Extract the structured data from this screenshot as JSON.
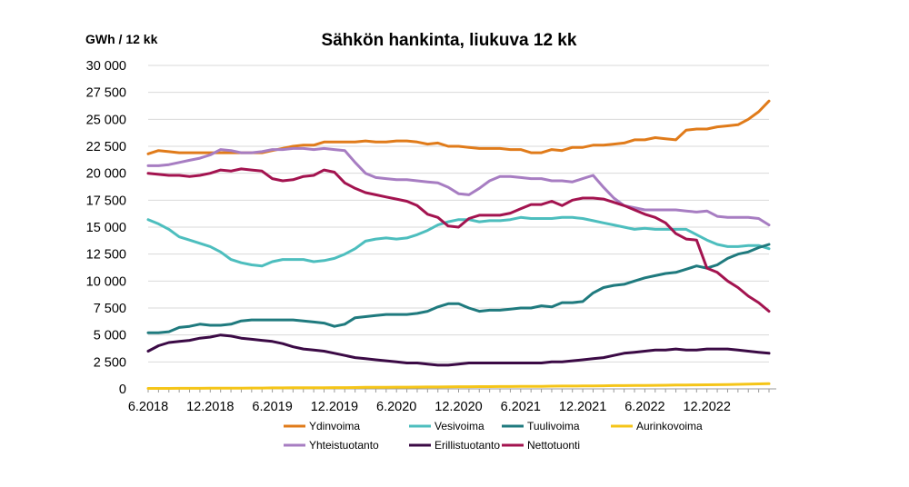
{
  "chart_data": {
    "type": "line",
    "title": "Sähkön hankinta, liukuva 12 kk",
    "ylabel": "GWh / 12 kk",
    "xlabel": "",
    "ylim": [
      0,
      30000
    ],
    "y_ticks": [
      "0",
      "2 500",
      "5 000",
      "7 500",
      "10 000",
      "12 500",
      "15 000",
      "17 500",
      "20 000",
      "22 500",
      "25 000",
      "27 500",
      "30 000"
    ],
    "y_tick_values": [
      0,
      2500,
      5000,
      7500,
      10000,
      12500,
      15000,
      17500,
      20000,
      22500,
      25000,
      27500,
      30000
    ],
    "x_ticks": [
      {
        "label": "6.2018",
        "index": 0
      },
      {
        "label": "12.2018",
        "index": 6
      },
      {
        "label": "6.2019",
        "index": 12
      },
      {
        "label": "12.2019",
        "index": 18
      },
      {
        "label": "6.2020",
        "index": 24
      },
      {
        "label": "12.2020",
        "index": 30
      },
      {
        "label": "6.2021",
        "index": 36
      },
      {
        "label": "12.2021",
        "index": 42
      },
      {
        "label": "6.2022",
        "index": 48
      },
      {
        "label": "12.2022",
        "index": 54
      }
    ],
    "x_range": [
      0,
      60
    ],
    "grid": "horizontal",
    "legend_position": "bottom",
    "series": [
      {
        "name": "Ydinvoima",
        "color": "#E07B1A",
        "values": [
          21800,
          22100,
          22000,
          21900,
          21900,
          21900,
          21900,
          21900,
          21900,
          21900,
          21900,
          21900,
          22100,
          22300,
          22500,
          22600,
          22600,
          22900,
          22900,
          22900,
          22900,
          23000,
          22900,
          22900,
          23000,
          23000,
          22900,
          22700,
          22800,
          22500,
          22500,
          22400,
          22300,
          22300,
          22300,
          22200,
          22200,
          21900,
          21900,
          22200,
          22100,
          22400,
          22400,
          22600,
          22600,
          22700,
          22800,
          23100,
          23100,
          23300,
          23200,
          23100,
          24000,
          24100,
          24100,
          24300,
          24400,
          24500,
          25000,
          25700,
          26700
        ]
      },
      {
        "name": "Vesivoima",
        "color": "#4DBEBE",
        "values": [
          15700,
          15300,
          14800,
          14100,
          13800,
          13500,
          13200,
          12700,
          12000,
          11700,
          11500,
          11400,
          11800,
          12000,
          12000,
          12000,
          11800,
          11900,
          12100,
          12500,
          13000,
          13700,
          13900,
          14000,
          13900,
          14000,
          14300,
          14700,
          15200,
          15500,
          15700,
          15700,
          15500,
          15600,
          15600,
          15700,
          15900,
          15800,
          15800,
          15800,
          15900,
          15900,
          15800,
          15600,
          15400,
          15200,
          15000,
          14800,
          14900,
          14800,
          14800,
          14800,
          14800,
          14300,
          13800,
          13400,
          13200,
          13200,
          13300,
          13300,
          13000
        ]
      },
      {
        "name": "Tuulivoima",
        "color": "#1F7A7E",
        "values": [
          5200,
          5200,
          5300,
          5700,
          5800,
          6000,
          5900,
          5900,
          6000,
          6300,
          6400,
          6400,
          6400,
          6400,
          6400,
          6300,
          6200,
          6100,
          5800,
          6000,
          6600,
          6700,
          6800,
          6900,
          6900,
          6900,
          7000,
          7200,
          7600,
          7900,
          7900,
          7500,
          7200,
          7300,
          7300,
          7400,
          7500,
          7500,
          7700,
          7600,
          8000,
          8000,
          8100,
          8900,
          9400,
          9600,
          9700,
          10000,
          10300,
          10500,
          10700,
          10800,
          11100,
          11400,
          11200,
          11500,
          12100,
          12500,
          12700,
          13100,
          13400
        ]
      },
      {
        "name": "Aurinkovoima",
        "color": "#F5C518",
        "values": [
          40,
          40,
          40,
          50,
          50,
          50,
          60,
          60,
          70,
          70,
          80,
          80,
          90,
          90,
          100,
          100,
          110,
          110,
          120,
          120,
          130,
          140,
          140,
          150,
          160,
          160,
          170,
          180,
          180,
          190,
          200,
          200,
          210,
          210,
          220,
          220,
          230,
          240,
          240,
          250,
          260,
          260,
          270,
          280,
          290,
          300,
          300,
          310,
          320,
          330,
          340,
          350,
          360,
          370,
          380,
          390,
          400,
          420,
          440,
          460,
          480
        ]
      },
      {
        "name": "Yhteistuotanto",
        "color": "#A77DC2",
        "values": [
          20700,
          20700,
          20800,
          21000,
          21200,
          21400,
          21700,
          22200,
          22100,
          21900,
          21900,
          22000,
          22200,
          22200,
          22300,
          22300,
          22200,
          22300,
          22200,
          22100,
          21000,
          20000,
          19600,
          19500,
          19400,
          19400,
          19300,
          19200,
          19100,
          18700,
          18100,
          18000,
          18600,
          19300,
          19700,
          19700,
          19600,
          19500,
          19500,
          19300,
          19300,
          19200,
          19500,
          19800,
          18700,
          17700,
          17000,
          16800,
          16600,
          16600,
          16600,
          16600,
          16500,
          16400,
          16500,
          16000,
          15900,
          15900,
          15900,
          15800,
          15200
        ]
      },
      {
        "name": "Erillistuotanto",
        "color": "#3B0A45",
        "values": [
          3500,
          4000,
          4300,
          4400,
          4500,
          4700,
          4800,
          5000,
          4900,
          4700,
          4600,
          4500,
          4400,
          4200,
          3900,
          3700,
          3600,
          3500,
          3300,
          3100,
          2900,
          2800,
          2700,
          2600,
          2500,
          2400,
          2400,
          2300,
          2200,
          2200,
          2300,
          2400,
          2400,
          2400,
          2400,
          2400,
          2400,
          2400,
          2400,
          2500,
          2500,
          2600,
          2700,
          2800,
          2900,
          3100,
          3300,
          3400,
          3500,
          3600,
          3600,
          3700,
          3600,
          3600,
          3700,
          3700,
          3700,
          3600,
          3500,
          3400,
          3300
        ]
      },
      {
        "name": "Nettotuonti",
        "color": "#A3134F",
        "values": [
          20000,
          19900,
          19800,
          19800,
          19700,
          19800,
          20000,
          20300,
          20200,
          20400,
          20300,
          20200,
          19500,
          19300,
          19400,
          19700,
          19800,
          20300,
          20100,
          19100,
          18600,
          18200,
          18000,
          17800,
          17600,
          17400,
          17000,
          16200,
          15900,
          15100,
          15000,
          15800,
          16100,
          16100,
          16100,
          16300,
          16700,
          17100,
          17100,
          17400,
          17000,
          17500,
          17700,
          17700,
          17600,
          17300,
          17000,
          16600,
          16200,
          15900,
          15400,
          14400,
          13900,
          13800,
          11200,
          10800,
          10000,
          9400,
          8600,
          8000,
          7200
        ]
      }
    ]
  }
}
